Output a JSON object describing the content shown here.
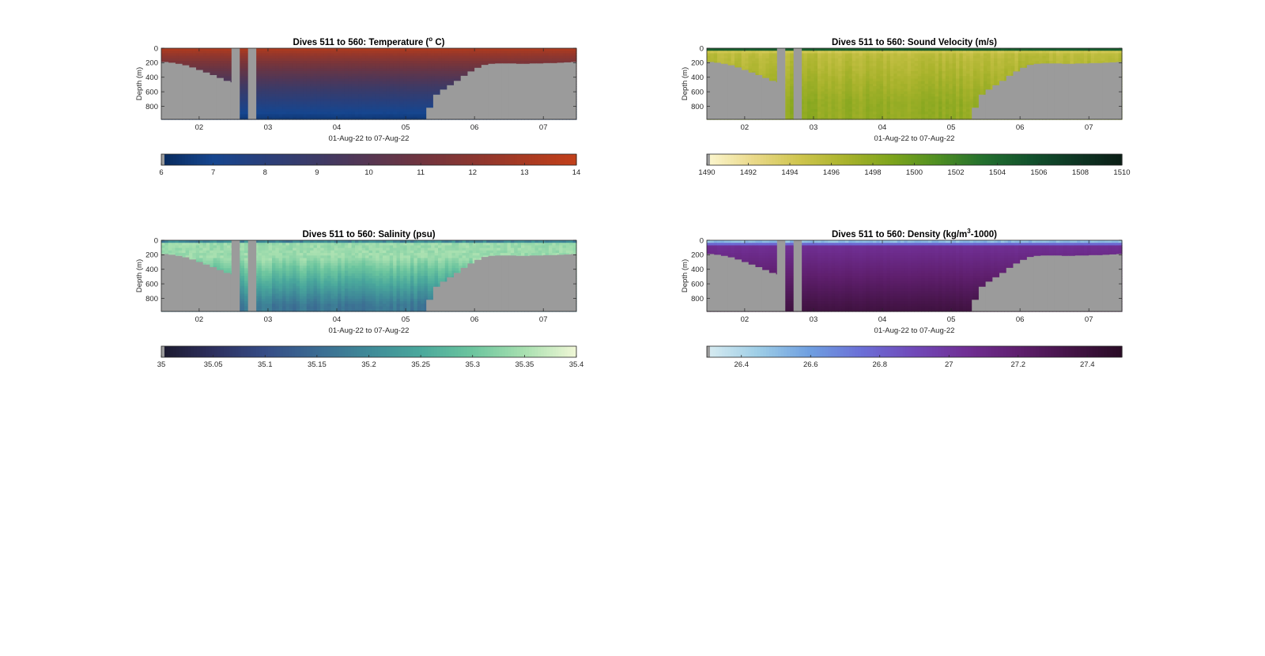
{
  "figure": {
    "title_prefix": "Dives 511 to 560",
    "ylabel": "Depth (m)",
    "xlabel": "01-Aug-22 to 07-Aug-22"
  },
  "chart_data": [
    {
      "type": "heatmap",
      "id": "temperature",
      "title_main": "Dives 511 to 560: Temperature (",
      "title_sup": "o",
      "title_end": " C)",
      "xlabel": "01-Aug-22 to 07-Aug-22",
      "ylabel": "Depth (m)",
      "x_ticks": [
        "02",
        "03",
        "04",
        "05",
        "06",
        "07"
      ],
      "x_range_days": [
        1.45,
        7.48
      ],
      "y_ticks": [
        0,
        200,
        400,
        600,
        800
      ],
      "y_range": [
        0,
        980
      ],
      "colorbar": {
        "min": 6,
        "max": 14,
        "ticks": [
          6,
          7,
          8,
          9,
          10,
          11,
          12,
          13,
          14
        ],
        "tick_labels": [
          "6",
          "7",
          "8",
          "9",
          "10",
          "11",
          "12",
          "13",
          "14"
        ]
      },
      "colormap": [
        "#082a5c",
        "#16468f",
        "#2a3f7a",
        "#3d3a66",
        "#563652",
        "#70353f",
        "#8b3630",
        "#a83a22",
        "#c2401a"
      ],
      "surface_value": 13.5,
      "deep_value": 6.4,
      "gradient_power": 0.75
    },
    {
      "type": "heatmap",
      "id": "sound_velocity",
      "title_main": "Dives 511 to 560: Sound Velocity (m/s)",
      "title_sup": "",
      "title_end": "",
      "xlabel": "01-Aug-22 to 07-Aug-22",
      "ylabel": "Depth (m)",
      "x_ticks": [
        "02",
        "03",
        "04",
        "05",
        "06",
        "07"
      ],
      "x_range_days": [
        1.45,
        7.48
      ],
      "y_ticks": [
        0,
        200,
        400,
        600,
        800
      ],
      "y_range": [
        0,
        980
      ],
      "colorbar": {
        "min": 1490,
        "max": 1510,
        "ticks": [
          1490,
          1492,
          1494,
          1496,
          1498,
          1500,
          1502,
          1504,
          1506,
          1508,
          1510
        ],
        "tick_labels": [
          "1490",
          "1492",
          "1494",
          "1496",
          "1498",
          "1500",
          "1502",
          "1504",
          "1506",
          "1508",
          "1510"
        ]
      },
      "colormap": [
        "#fcf7d0",
        "#ead98a",
        "#cfc54e",
        "#a9b32c",
        "#7ea41c",
        "#4f8f22",
        "#236f2e",
        "#12522d",
        "#0e3624",
        "#0b1e16"
      ],
      "surface_value": 1504.5,
      "mid_value": 1495.5,
      "deep_value": 1497.8
    },
    {
      "type": "heatmap",
      "id": "salinity",
      "title_main": "Dives 511 to 560: Salinity (psu)",
      "title_sup": "",
      "title_end": "",
      "xlabel": "01-Aug-22 to 07-Aug-22",
      "ylabel": "Depth (m)",
      "x_ticks": [
        "02",
        "03",
        "04",
        "05",
        "06",
        "07"
      ],
      "x_range_days": [
        1.45,
        7.48
      ],
      "y_ticks": [
        0,
        200,
        400,
        600,
        800
      ],
      "y_range": [
        0,
        980
      ],
      "colorbar": {
        "min": 35,
        "max": 35.4,
        "ticks": [
          35,
          35.05,
          35.1,
          35.15,
          35.2,
          35.25,
          35.3,
          35.35,
          35.4
        ],
        "tick_labels": [
          "35",
          "35.05",
          "35.1",
          "35.15",
          "35.2",
          "35.25",
          "35.3",
          "35.35",
          "35.4"
        ]
      },
      "colormap": [
        "#1b1a2e",
        "#2d2f5e",
        "#354c86",
        "#3b6b92",
        "#3f8a98",
        "#4aa89c",
        "#6cc59e",
        "#a8e0b0",
        "#f0f7d6"
      ],
      "surface_value": 35.2,
      "mid_value": 35.34,
      "deep_value": 35.17
    },
    {
      "type": "heatmap",
      "id": "density",
      "title_main": "Dives 511 to 560: Density (kg/m",
      "title_sup": "3",
      "title_end": "-1000)",
      "xlabel": "01-Aug-22 to 07-Aug-22",
      "ylabel": "Depth (m)",
      "x_ticks": [
        "02",
        "03",
        "04",
        "05",
        "06",
        "07"
      ],
      "x_range_days": [
        1.45,
        7.48
      ],
      "y_ticks": [
        0,
        200,
        400,
        600,
        800
      ],
      "y_range": [
        0,
        980
      ],
      "colorbar": {
        "min": 26.3,
        "max": 27.5,
        "ticks": [
          26.4,
          26.6,
          26.8,
          27,
          27.2,
          27.4
        ],
        "tick_labels": [
          "26.4",
          "26.6",
          "26.8",
          "27",
          "27.2",
          "27.4"
        ]
      },
      "colormap": [
        "#d8ecf1",
        "#9dcde6",
        "#6e9ee0",
        "#6b6ed6",
        "#7049b8",
        "#702f94",
        "#5f1f6e",
        "#441447",
        "#2a0c26"
      ],
      "surface_value": 26.5,
      "mid_value": 27.05,
      "deep_value": 27.38
    }
  ],
  "bathymetry": {
    "day": [
      1.45,
      1.55,
      1.65,
      1.75,
      1.85,
      1.95,
      2.05,
      2.15,
      2.25,
      2.35,
      2.45,
      2.5,
      5.2,
      5.3,
      5.4,
      5.5,
      5.6,
      5.7,
      5.8,
      5.9,
      6.0,
      6.1,
      6.2,
      6.3,
      6.4,
      6.5,
      6.6,
      6.7,
      6.8,
      6.9,
      7.0,
      7.1,
      7.2,
      7.3,
      7.4,
      7.48
    ],
    "depth": [
      190,
      200,
      215,
      235,
      265,
      300,
      335,
      370,
      410,
      450,
      470,
      980,
      980,
      820,
      640,
      570,
      510,
      450,
      380,
      320,
      270,
      230,
      215,
      210,
      210,
      210,
      215,
      215,
      210,
      210,
      205,
      205,
      200,
      195,
      190,
      190
    ]
  },
  "no_data_days": [
    [
      2.47,
      2.59
    ],
    [
      2.71,
      2.83
    ]
  ],
  "no_data_color": "#9b9b9b"
}
